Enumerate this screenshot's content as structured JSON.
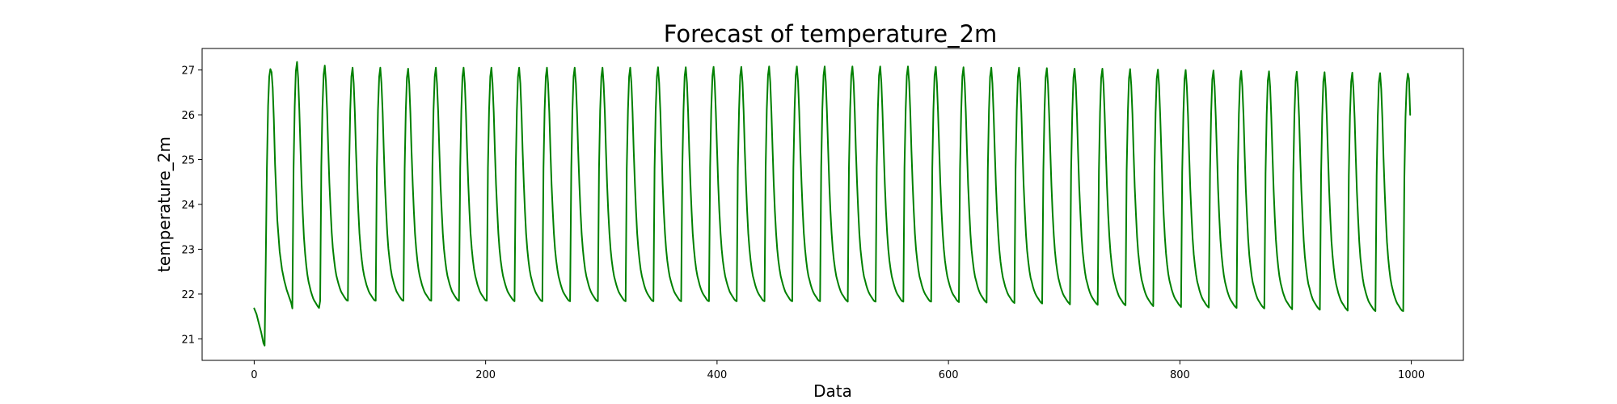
{
  "chart_data": {
    "type": "line",
    "title": "Forecast of temperature_2m",
    "xlabel": "Data",
    "ylabel": "temperature_2m",
    "xlim": [
      -45,
      1045
    ],
    "ylim": [
      20.52,
      27.48
    ],
    "x_ticks": [
      0,
      200,
      400,
      600,
      800,
      1000
    ],
    "y_ticks": [
      21,
      22,
      23,
      24,
      25,
      26,
      27
    ],
    "grid": false,
    "legend": "none",
    "series": [
      {
        "color": "#008000",
        "cycle_length": 24,
        "first_cycle": {
          "x": [
            0,
            2,
            4,
            6,
            8,
            9,
            10,
            11,
            12,
            13,
            14,
            15,
            16,
            17,
            18,
            20,
            22,
            24,
            26,
            28,
            30,
            32,
            33
          ],
          "y": [
            21.68,
            21.55,
            21.35,
            21.15,
            20.9,
            20.85,
            22.7,
            24.8,
            26.2,
            26.85,
            27.02,
            26.95,
            26.6,
            25.9,
            24.9,
            23.65,
            22.95,
            22.55,
            22.3,
            22.1,
            21.95,
            21.8,
            21.68
          ]
        },
        "cycle_shape": {
          "offset": [
            0,
            1,
            2,
            3,
            4,
            5,
            6,
            7,
            8,
            9,
            10,
            11,
            12,
            13,
            14,
            15,
            16,
            17,
            18,
            19,
            20,
            21,
            22,
            23
          ],
          "y": [
            21.84,
            24.8,
            26.1,
            26.85,
            27.05,
            26.7,
            26.05,
            25.2,
            24.45,
            23.85,
            23.35,
            23.0,
            22.75,
            22.55,
            22.4,
            22.3,
            22.2,
            22.12,
            22.05,
            22.0,
            21.96,
            21.92,
            21.88,
            21.85
          ]
        },
        "cycles": [
          {
            "start": 33,
            "peak": 27.18,
            "trough": 21.68
          },
          {
            "start": 57,
            "peak": 27.1,
            "trough": 21.85
          },
          {
            "start": 81,
            "peak": 27.05,
            "trough": 21.85
          },
          {
            "start": 105,
            "peak": 27.05,
            "trough": 21.85
          },
          {
            "start": 129,
            "peak": 27.03,
            "trough": 21.85
          },
          {
            "start": 153,
            "peak": 27.05,
            "trough": 21.85
          },
          {
            "start": 177,
            "peak": 27.05,
            "trough": 21.85
          },
          {
            "start": 201,
            "peak": 27.05,
            "trough": 21.85
          },
          {
            "start": 225,
            "peak": 27.05,
            "trough": 21.84
          },
          {
            "start": 249,
            "peak": 27.05,
            "trough": 21.84
          },
          {
            "start": 273,
            "peak": 27.05,
            "trough": 21.84
          },
          {
            "start": 297,
            "peak": 27.05,
            "trough": 21.84
          },
          {
            "start": 321,
            "peak": 27.05,
            "trough": 21.84
          },
          {
            "start": 345,
            "peak": 27.06,
            "trough": 21.84
          },
          {
            "start": 369,
            "peak": 27.06,
            "trough": 21.84
          },
          {
            "start": 393,
            "peak": 27.07,
            "trough": 21.84
          },
          {
            "start": 417,
            "peak": 27.07,
            "trough": 21.84
          },
          {
            "start": 441,
            "peak": 27.08,
            "trough": 21.84
          },
          {
            "start": 465,
            "peak": 27.08,
            "trough": 21.84
          },
          {
            "start": 489,
            "peak": 27.08,
            "trough": 21.84
          },
          {
            "start": 513,
            "peak": 27.08,
            "trough": 21.83
          },
          {
            "start": 537,
            "peak": 27.08,
            "trough": 21.83
          },
          {
            "start": 561,
            "peak": 27.08,
            "trough": 21.83
          },
          {
            "start": 585,
            "peak": 27.07,
            "trough": 21.83
          },
          {
            "start": 609,
            "peak": 27.06,
            "trough": 21.82
          },
          {
            "start": 633,
            "peak": 27.05,
            "trough": 21.81
          },
          {
            "start": 657,
            "peak": 27.05,
            "trough": 21.8
          },
          {
            "start": 681,
            "peak": 27.04,
            "trough": 21.79
          },
          {
            "start": 705,
            "peak": 27.03,
            "trough": 21.77
          },
          {
            "start": 729,
            "peak": 27.03,
            "trough": 21.76
          },
          {
            "start": 753,
            "peak": 27.02,
            "trough": 21.75
          },
          {
            "start": 777,
            "peak": 27.01,
            "trough": 21.73
          },
          {
            "start": 801,
            "peak": 27.0,
            "trough": 21.71
          },
          {
            "start": 825,
            "peak": 26.99,
            "trough": 21.7
          },
          {
            "start": 849,
            "peak": 26.98,
            "trough": 21.69
          },
          {
            "start": 873,
            "peak": 26.97,
            "trough": 21.68
          },
          {
            "start": 897,
            "peak": 26.96,
            "trough": 21.66
          },
          {
            "start": 921,
            "peak": 26.95,
            "trough": 21.65
          },
          {
            "start": 945,
            "peak": 26.94,
            "trough": 21.63
          },
          {
            "start": 969,
            "peak": 26.93,
            "trough": 21.62
          }
        ],
        "tail": {
          "x": [
            993,
            994,
            995,
            996,
            997,
            998,
            999
          ],
          "y": [
            21.62,
            24.6,
            25.95,
            26.7,
            26.92,
            26.8,
            26.0
          ]
        }
      }
    ]
  }
}
